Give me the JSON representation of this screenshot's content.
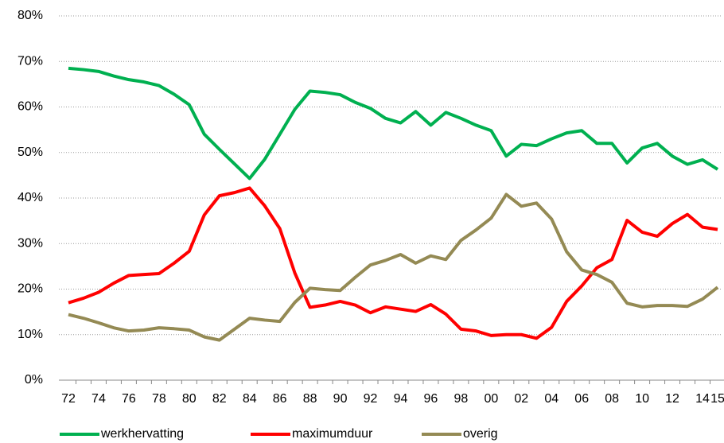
{
  "chart_data": {
    "type": "line",
    "categories": [
      "72",
      null,
      "74",
      null,
      "76",
      null,
      "78",
      null,
      "80",
      null,
      "82",
      null,
      "84",
      null,
      "86",
      null,
      "88",
      null,
      "90",
      null,
      "92",
      null,
      "94",
      null,
      "96",
      null,
      "98",
      null,
      "00",
      null,
      "02",
      null,
      "04",
      null,
      "06",
      null,
      "08",
      null,
      "10",
      null,
      "12",
      null,
      "14",
      "15"
    ],
    "series": [
      {
        "name": "werkhervatting",
        "color": "#00b050",
        "values": [
          68.5,
          68.2,
          67.8,
          66.8,
          66,
          65.5,
          64.7,
          62.8,
          60.5,
          54,
          50.7,
          47.5,
          44.3,
          48.5,
          54,
          59.5,
          63.5,
          63.2,
          62.7,
          61,
          59.7,
          57.5,
          56.5,
          59,
          56,
          58.8,
          57.5,
          56,
          54.8,
          49.2,
          51.8,
          51.5,
          53,
          54.3,
          54.8,
          52,
          52,
          47.7,
          51,
          52,
          49.2,
          47.4,
          48.4,
          46.3
        ]
      },
      {
        "name": "maximumduur",
        "color": "#ff0000",
        "values": [
          17,
          18,
          19.3,
          21.3,
          23,
          23.2,
          23.4,
          25.7,
          28.3,
          36.3,
          40.5,
          41.2,
          42.2,
          38.3,
          33.3,
          23.5,
          16,
          16.5,
          17.3,
          16.5,
          14.8,
          16.1,
          15.6,
          15.1,
          16.6,
          14.5,
          11.2,
          10.8,
          9.8,
          10,
          10,
          9.2,
          11.6,
          17.3,
          20.7,
          24.7,
          26.5,
          35.1,
          32.5,
          31.6,
          34.4,
          36.4,
          33.6,
          33.1
        ]
      },
      {
        "name": "overig",
        "color": "#948a54",
        "values": [
          14.4,
          13.6,
          12.6,
          11.5,
          10.8,
          11,
          11.5,
          11.3,
          11,
          9.5,
          8.8,
          11.2,
          13.6,
          13.2,
          12.9,
          17.1,
          20.2,
          19.9,
          19.7,
          22.6,
          25.3,
          26.3,
          27.6,
          25.7,
          27.3,
          26.5,
          30.7,
          33,
          35.6,
          40.8,
          38.2,
          38.9,
          35.4,
          28.2,
          24.2,
          23.2,
          21.5,
          16.9,
          16.1,
          16.4,
          16.4,
          16.2,
          17.8,
          20.4
        ]
      }
    ],
    "ylim": [
      0,
      80
    ],
    "yticks": [
      {
        "value": 0,
        "label": "0%"
      },
      {
        "value": 10,
        "label": "10%"
      },
      {
        "value": 20,
        "label": "20%"
      },
      {
        "value": 30,
        "label": "30%"
      },
      {
        "value": 40,
        "label": "40%"
      },
      {
        "value": 50,
        "label": "50%"
      },
      {
        "value": 60,
        "label": "60%"
      },
      {
        "value": 70,
        "label": "70%"
      },
      {
        "value": 80,
        "label": "80%"
      }
    ],
    "grid": true,
    "legend": "bottom"
  }
}
